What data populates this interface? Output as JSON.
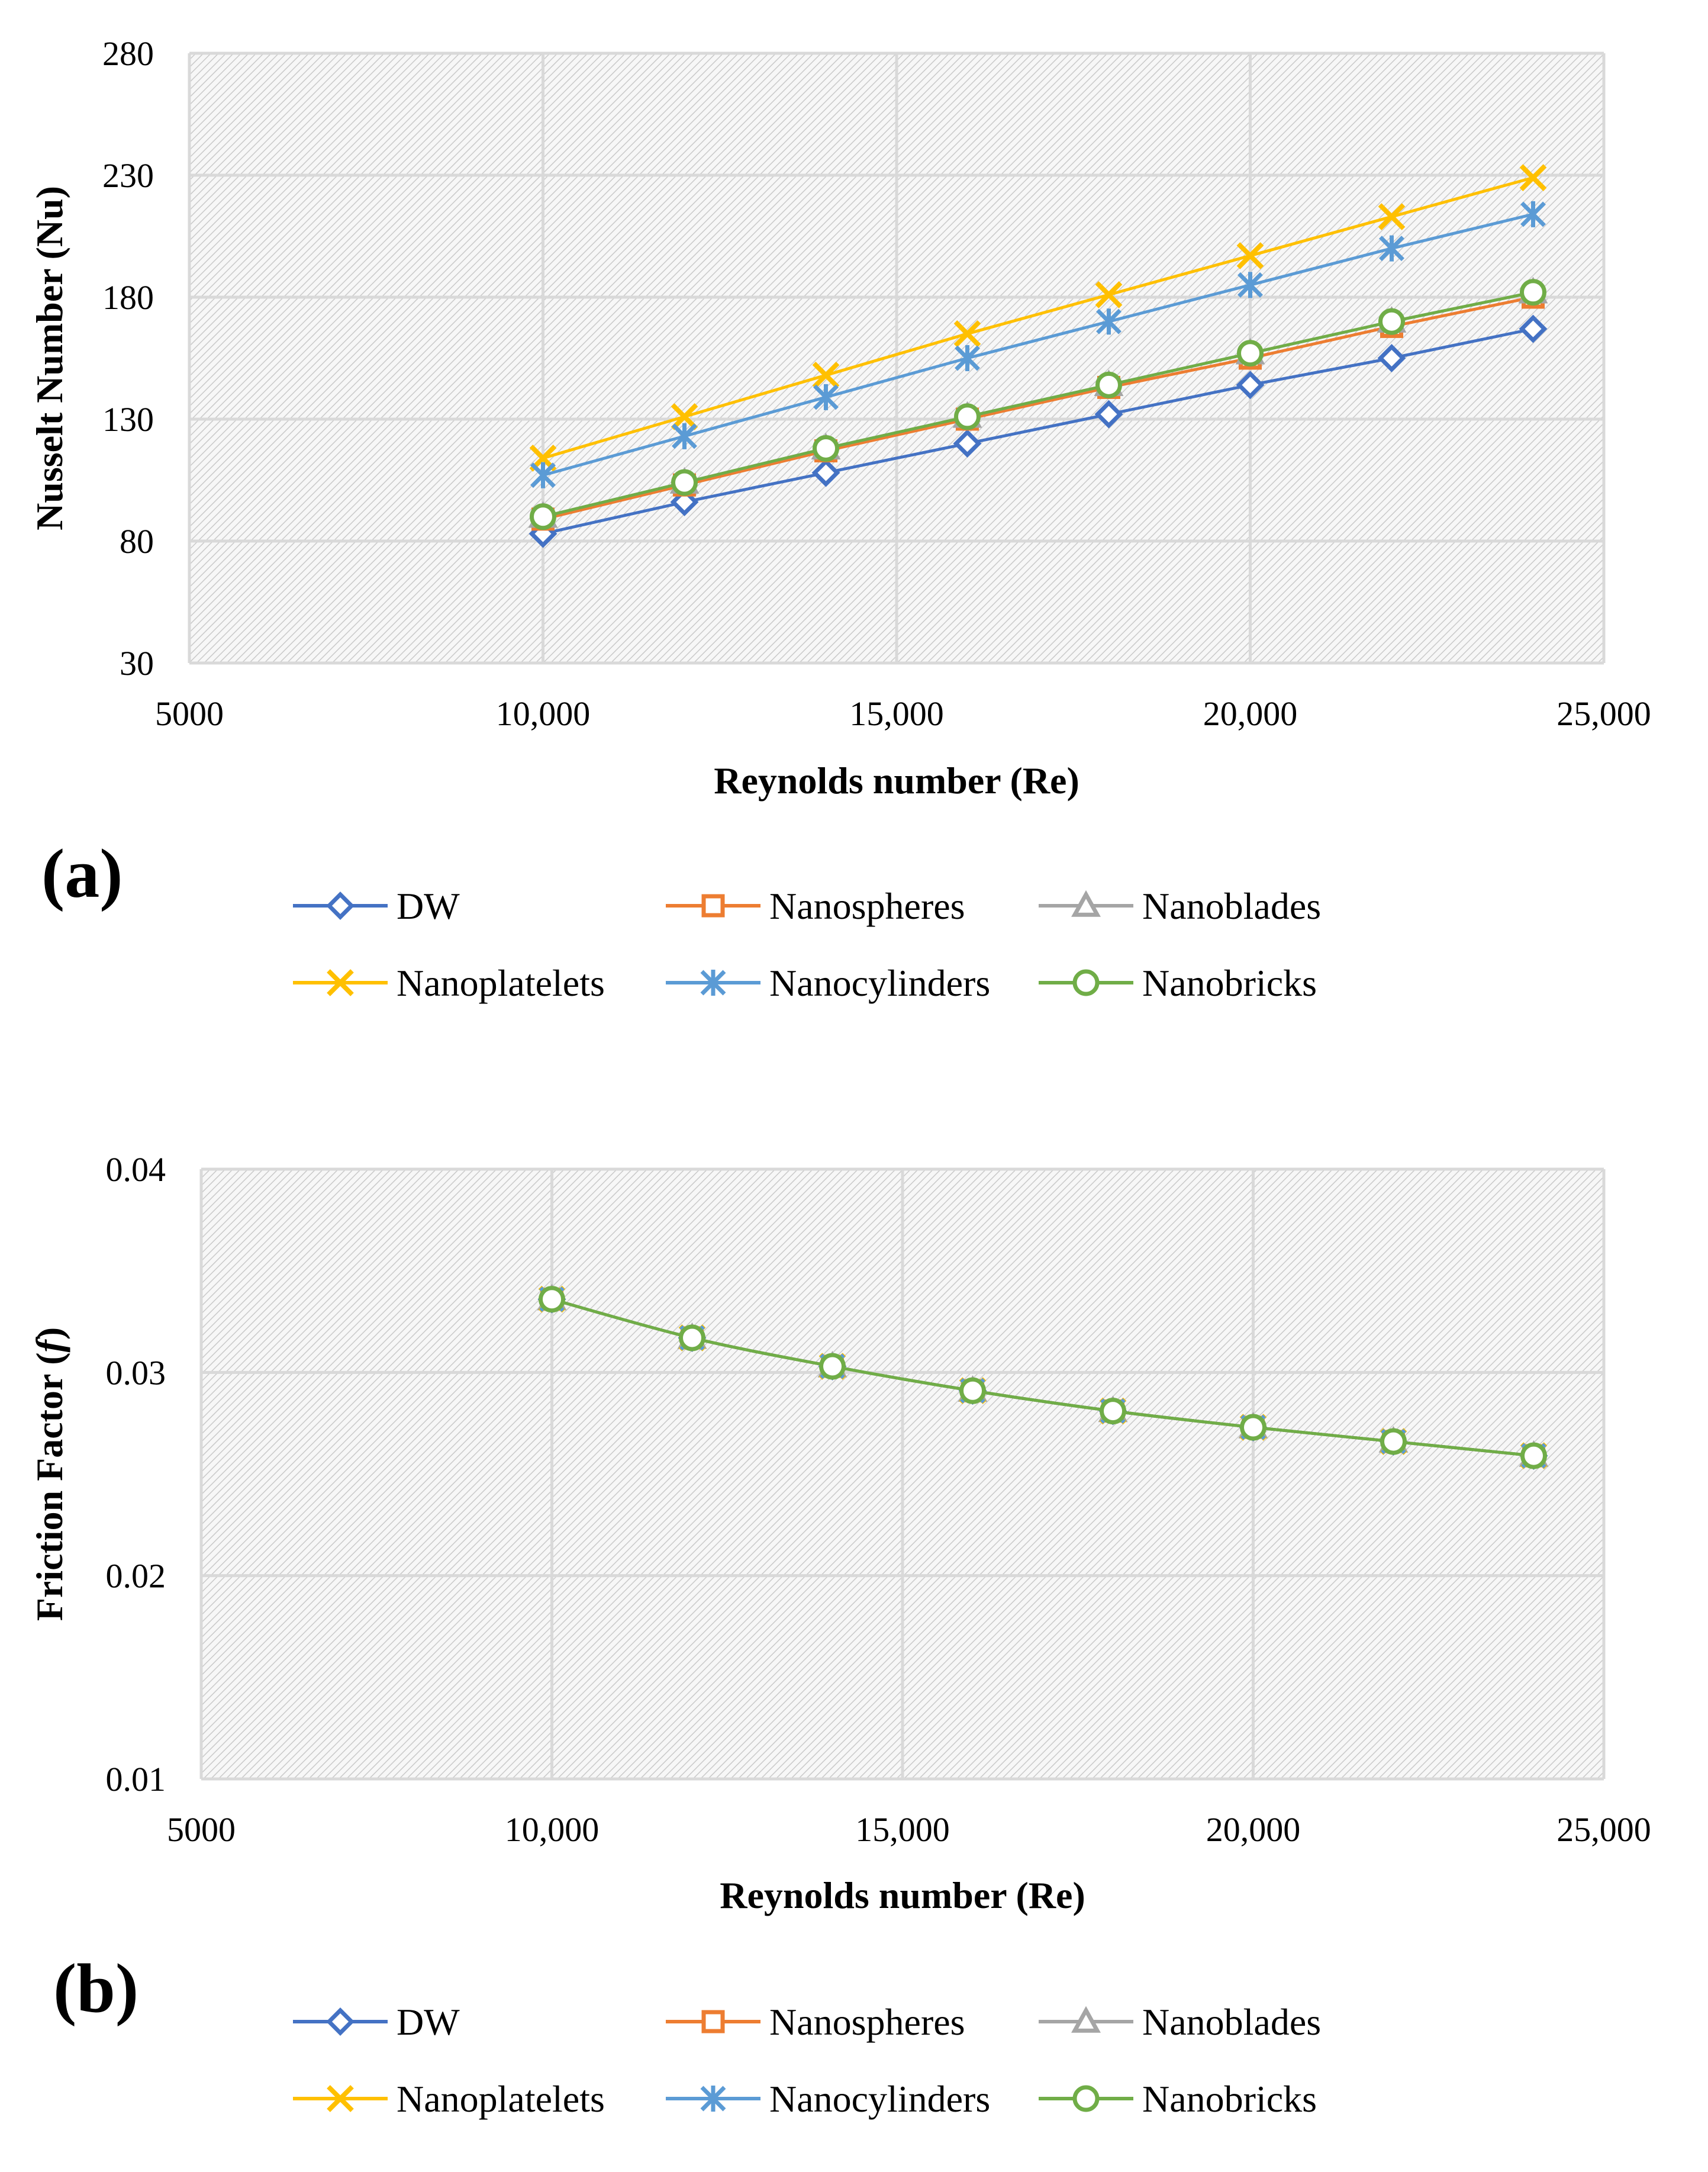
{
  "figure": {
    "panel_labels": [
      "(a)",
      "(b)"
    ]
  },
  "legend_entries": [
    "DW",
    "Nanospheres",
    "Nanoblades",
    "Nanoplatelets",
    "Nanocylinders",
    "Nanobricks"
  ],
  "series_styles": [
    {
      "name": "DW",
      "color": "#4472C4",
      "marker": "diamond"
    },
    {
      "name": "Nanospheres",
      "color": "#ED7D31",
      "marker": "square"
    },
    {
      "name": "Nanoblades",
      "color": "#A5A5A5",
      "marker": "triangle"
    },
    {
      "name": "Nanoplatelets",
      "color": "#FFC000",
      "marker": "x"
    },
    {
      "name": "Nanocylinders",
      "color": "#5B9BD5",
      "marker": "asterisk"
    },
    {
      "name": "Nanobricks",
      "color": "#70AD47",
      "marker": "circle"
    }
  ],
  "chart_data": [
    {
      "type": "line",
      "panel": "(a)",
      "title": "",
      "xlabel": "Reynolds number (Re)",
      "ylabel": "Nusselt Number (Nu)",
      "xlim": [
        5000,
        25000
      ],
      "ylim": [
        30,
        280
      ],
      "xticks": [
        5000,
        10000,
        15000,
        20000,
        25000
      ],
      "xtick_labels": [
        "5000",
        "10,000",
        "15,000",
        "20,000",
        "25,000"
      ],
      "yticks": [
        30,
        80,
        130,
        180,
        230,
        280
      ],
      "ytick_labels": [
        "30",
        "80",
        "130",
        "180",
        "230",
        "280"
      ],
      "grid": true,
      "legend_position": "bottom",
      "x": [
        10000,
        12000,
        14000,
        16000,
        18000,
        20000,
        22000,
        24000
      ],
      "series": [
        {
          "name": "DW",
          "values": [
            83,
            96,
            108,
            120,
            132,
            144,
            155,
            167
          ]
        },
        {
          "name": "Nanospheres",
          "values": [
            89,
            103,
            117,
            130,
            143,
            155,
            168,
            180
          ]
        },
        {
          "name": "Nanoblades",
          "values": [
            90,
            104,
            118,
            131,
            144,
            157,
            170,
            182
          ]
        },
        {
          "name": "Nanoplatelets",
          "values": [
            114,
            131,
            148,
            165,
            181,
            197,
            213,
            229
          ]
        },
        {
          "name": "Nanocylinders",
          "values": [
            107,
            123,
            139,
            155,
            170,
            185,
            200,
            214
          ]
        },
        {
          "name": "Nanobricks",
          "values": [
            90,
            104,
            118,
            131,
            144,
            157,
            170,
            182
          ]
        }
      ]
    },
    {
      "type": "line",
      "panel": "(b)",
      "title": "",
      "xlabel": "Reynolds number (Re)",
      "ylabel": "Friction Factor (f)",
      "ylabel_main": "Friction Factor (",
      "ylabel_symbol": "f",
      "ylabel_close": ")",
      "xlim": [
        5000,
        25000
      ],
      "ylim": [
        0.01,
        0.04
      ],
      "xticks": [
        5000,
        10000,
        15000,
        20000,
        25000
      ],
      "xtick_labels": [
        "5000",
        "10,000",
        "15,000",
        "20,000",
        "25,000"
      ],
      "yticks": [
        0.01,
        0.02,
        0.03,
        0.04
      ],
      "ytick_labels": [
        "0.01",
        "0.02",
        "0.03",
        "0.04"
      ],
      "grid": true,
      "legend_position": "bottom",
      "x": [
        10000,
        12000,
        14000,
        16000,
        18000,
        20000,
        22000,
        24000
      ],
      "series": [
        {
          "name": "DW",
          "values": [
            0.0336,
            0.0317,
            0.0303,
            0.0291,
            0.0281,
            0.0273,
            0.0266,
            0.0259
          ]
        },
        {
          "name": "Nanospheres",
          "values": [
            0.0336,
            0.0317,
            0.0303,
            0.0291,
            0.0281,
            0.0273,
            0.0266,
            0.0259
          ]
        },
        {
          "name": "Nanoblades",
          "values": [
            0.0336,
            0.0317,
            0.0303,
            0.0291,
            0.0281,
            0.0273,
            0.0266,
            0.0259
          ]
        },
        {
          "name": "Nanoplatelets",
          "values": [
            0.0336,
            0.0317,
            0.0303,
            0.0291,
            0.0281,
            0.0273,
            0.0266,
            0.0259
          ]
        },
        {
          "name": "Nanocylinders",
          "values": [
            0.0336,
            0.0317,
            0.0303,
            0.0291,
            0.0281,
            0.0273,
            0.0266,
            0.0259
          ]
        },
        {
          "name": "Nanobricks",
          "values": [
            0.0336,
            0.0317,
            0.0303,
            0.0291,
            0.0281,
            0.0273,
            0.0266,
            0.0259
          ]
        }
      ]
    }
  ]
}
